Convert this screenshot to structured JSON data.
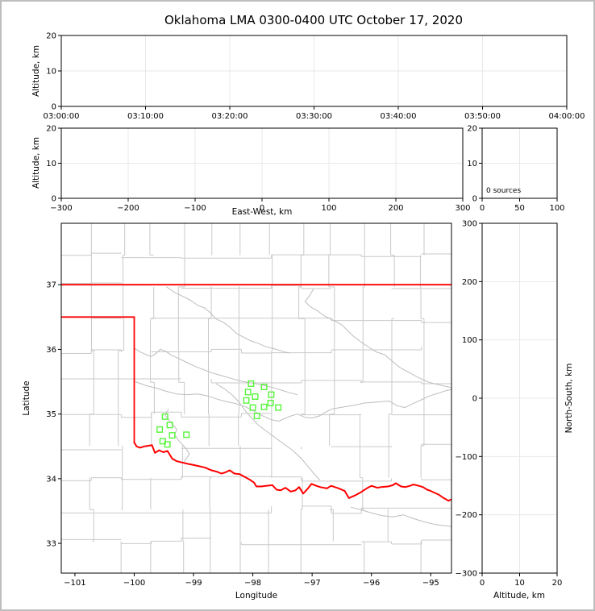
{
  "title": "Oklahoma LMA 0300-0400 UTC October 17, 2020",
  "colors": {
    "background": "#ffffff",
    "frame_border": "#bdbdbd",
    "spine": "#000000",
    "grid": "#e8e8e8",
    "county_line": "#c9c9c9",
    "river_line": "#bdbdbd",
    "state_border": "#ff0000",
    "station_marker": "#57f53b",
    "text": "#000000"
  },
  "chart_data": [
    {
      "id": "time_height",
      "type": "scatter",
      "xlabel": "",
      "ylabel": "Altitude, km",
      "xlim": [
        0,
        3600
      ],
      "ylim": [
        0,
        20
      ],
      "xticks": {
        "values": [
          0,
          600,
          1200,
          1800,
          2400,
          3000,
          3600
        ],
        "labels": [
          "03:00:00",
          "03:10:00",
          "03:20:00",
          "03:30:00",
          "03:40:00",
          "03:50:00",
          "04:00:00"
        ]
      },
      "yticks": {
        "values": [
          0,
          10,
          20
        ],
        "labels": [
          "0",
          "10",
          "20"
        ]
      },
      "grid": true,
      "points": []
    },
    {
      "id": "ew_height",
      "type": "scatter",
      "xlabel": "East-West, km",
      "ylabel": "Altitude, km",
      "xlim": [
        -300,
        300
      ],
      "ylim": [
        0,
        20
      ],
      "xticks": {
        "values": [
          -300,
          -200,
          -100,
          0,
          100,
          200,
          300
        ],
        "labels": [
          "−300",
          "−200",
          "−100",
          "0",
          "100",
          "200",
          "300"
        ]
      },
      "yticks": {
        "values": [
          0,
          10,
          20
        ],
        "labels": [
          "0",
          "10",
          "20"
        ]
      },
      "grid": true,
      "points": []
    },
    {
      "id": "alt_hist",
      "type": "line",
      "annotation": "0 sources",
      "xlim": [
        0,
        100
      ],
      "ylim": [
        0,
        20
      ],
      "xticks": {
        "values": [
          0,
          50,
          100
        ],
        "labels": [
          "0",
          "50",
          "100"
        ]
      },
      "yticks": {
        "values": [
          0,
          10,
          20
        ],
        "labels": [
          "0",
          "10",
          "20"
        ]
      },
      "grid": true,
      "points": []
    },
    {
      "id": "plan_map",
      "type": "scatter",
      "xlabel": "Longitude",
      "ylabel": "Latitude",
      "xlim": [
        -101.23,
        -94.65
      ],
      "ylim": [
        32.54,
        37.95
      ],
      "xticks": {
        "values": [
          -101,
          -100,
          -99,
          -98,
          -97,
          -96,
          -95
        ],
        "labels": [
          "−101",
          "−100",
          "−99",
          "−98",
          "−97",
          "−96",
          "−95"
        ]
      },
      "yticks": {
        "values": [
          33,
          34,
          35,
          36,
          37
        ],
        "labels": [
          "33",
          "34",
          "35",
          "36",
          "37"
        ]
      },
      "grid": false,
      "stations": [
        [
          -99.48,
          34.96
        ],
        [
          -99.4,
          34.83
        ],
        [
          -99.57,
          34.76
        ],
        [
          -99.36,
          34.67
        ],
        [
          -99.12,
          34.68
        ],
        [
          -99.52,
          34.58
        ],
        [
          -99.44,
          34.53
        ],
        [
          -98.03,
          35.47
        ],
        [
          -97.81,
          35.42
        ],
        [
          -98.08,
          35.34
        ],
        [
          -97.96,
          35.27
        ],
        [
          -98.11,
          35.21
        ],
        [
          -97.69,
          35.3
        ],
        [
          -97.7,
          35.17
        ],
        [
          -97.81,
          35.11
        ],
        [
          -98.0,
          35.1
        ],
        [
          -97.57,
          35.1
        ],
        [
          -97.93,
          34.97
        ]
      ],
      "state_border": [
        [
          [
            -101.23,
            37.0
          ],
          [
            -94.65,
            37.0
          ]
        ],
        [
          [
            -94.62,
            37.0
          ],
          [
            -94.62,
            36.5
          ]
        ],
        [
          [
            -101.23,
            36.5
          ],
          [
            -100.0,
            36.5
          ]
        ],
        [
          [
            -100.0,
            36.5
          ],
          [
            -100.0,
            34.56
          ]
        ]
      ],
      "red_river": [
        [
          -100.0,
          34.56
        ],
        [
          -99.96,
          34.5
        ],
        [
          -99.9,
          34.48
        ],
        [
          -99.83,
          34.5
        ],
        [
          -99.76,
          34.51
        ],
        [
          -99.7,
          34.52
        ],
        [
          -99.65,
          34.4
        ],
        [
          -99.58,
          34.44
        ],
        [
          -99.51,
          34.41
        ],
        [
          -99.44,
          34.43
        ],
        [
          -99.36,
          34.31
        ],
        [
          -99.28,
          34.27
        ],
        [
          -99.19,
          34.25
        ],
        [
          -99.1,
          34.23
        ],
        [
          -98.99,
          34.21
        ],
        [
          -98.89,
          34.19
        ],
        [
          -98.8,
          34.17
        ],
        [
          -98.7,
          34.13
        ],
        [
          -98.61,
          34.11
        ],
        [
          -98.53,
          34.08
        ],
        [
          -98.46,
          34.1
        ],
        [
          -98.39,
          34.13
        ],
        [
          -98.31,
          34.08
        ],
        [
          -98.22,
          34.07
        ],
        [
          -98.14,
          34.03
        ],
        [
          -98.06,
          33.99
        ],
        [
          -97.98,
          33.94
        ],
        [
          -97.94,
          33.88
        ],
        [
          -97.86,
          33.88
        ],
        [
          -97.78,
          33.89
        ],
        [
          -97.67,
          33.9
        ],
        [
          -97.6,
          33.83
        ],
        [
          -97.53,
          33.82
        ],
        [
          -97.45,
          33.86
        ],
        [
          -97.36,
          33.8
        ],
        [
          -97.28,
          33.82
        ],
        [
          -97.22,
          33.87
        ],
        [
          -97.15,
          33.77
        ],
        [
          -97.08,
          33.84
        ],
        [
          -97.01,
          33.92
        ],
        [
          -96.93,
          33.89
        ],
        [
          -96.86,
          33.87
        ],
        [
          -96.75,
          33.85
        ],
        [
          -96.68,
          33.89
        ],
        [
          -96.55,
          33.85
        ],
        [
          -96.45,
          33.81
        ],
        [
          -96.38,
          33.7
        ],
        [
          -96.28,
          33.74
        ],
        [
          -96.18,
          33.79
        ],
        [
          -96.08,
          33.85
        ],
        [
          -96.0,
          33.89
        ],
        [
          -95.9,
          33.86
        ],
        [
          -95.84,
          33.87
        ],
        [
          -95.72,
          33.88
        ],
        [
          -95.64,
          33.9
        ],
        [
          -95.59,
          33.93
        ],
        [
          -95.5,
          33.88
        ],
        [
          -95.43,
          33.87
        ],
        [
          -95.35,
          33.89
        ],
        [
          -95.29,
          33.91
        ],
        [
          -95.2,
          33.89
        ],
        [
          -95.13,
          33.87
        ],
        [
          -95.06,
          33.83
        ],
        [
          -95.0,
          33.81
        ],
        [
          -94.93,
          33.78
        ],
        [
          -94.86,
          33.75
        ],
        [
          -94.78,
          33.7
        ],
        [
          -94.7,
          33.66
        ],
        [
          -94.65,
          33.68
        ]
      ],
      "rivers": [
        [
          [
            -99.46,
            36.97
          ],
          [
            -99.32,
            36.88
          ],
          [
            -99.18,
            36.82
          ],
          [
            -99.05,
            36.76
          ],
          [
            -98.93,
            36.68
          ],
          [
            -98.81,
            36.64
          ],
          [
            -98.71,
            36.56
          ],
          [
            -98.62,
            36.47
          ],
          [
            -98.5,
            36.42
          ],
          [
            -98.38,
            36.34
          ],
          [
            -98.28,
            36.25
          ],
          [
            -98.16,
            36.19
          ],
          [
            -98.03,
            36.13
          ],
          [
            -97.9,
            36.09
          ],
          [
            -97.78,
            36.04
          ],
          [
            -97.64,
            36.01
          ],
          [
            -97.5,
            35.97
          ],
          [
            -97.38,
            35.94
          ]
        ],
        [
          [
            -96.98,
            36.93
          ],
          [
            -97.05,
            36.82
          ],
          [
            -97.12,
            36.74
          ],
          [
            -97.03,
            36.66
          ],
          [
            -96.9,
            36.59
          ],
          [
            -96.78,
            36.51
          ],
          [
            -96.62,
            36.44
          ],
          [
            -96.5,
            36.38
          ],
          [
            -96.4,
            36.29
          ],
          [
            -96.3,
            36.2
          ],
          [
            -96.17,
            36.11
          ],
          [
            -96.04,
            36.03
          ],
          [
            -95.92,
            35.96
          ],
          [
            -95.78,
            35.92
          ],
          [
            -95.64,
            35.81
          ],
          [
            -95.52,
            35.72
          ],
          [
            -95.38,
            35.65
          ],
          [
            -95.22,
            35.57
          ],
          [
            -95.06,
            35.5
          ],
          [
            -94.9,
            35.46
          ],
          [
            -94.75,
            35.43
          ],
          [
            -94.65,
            35.41
          ]
        ],
        [
          [
            -100.0,
            36.02
          ],
          [
            -99.9,
            35.96
          ],
          [
            -99.8,
            35.92
          ],
          [
            -99.71,
            35.89
          ],
          [
            -99.63,
            35.94
          ],
          [
            -99.56,
            36.0
          ],
          [
            -99.47,
            35.97
          ],
          [
            -99.37,
            35.91
          ],
          [
            -99.25,
            35.86
          ],
          [
            -99.12,
            35.8
          ],
          [
            -98.98,
            35.74
          ],
          [
            -98.84,
            35.69
          ],
          [
            -98.7,
            35.64
          ],
          [
            -98.55,
            35.6
          ],
          [
            -98.4,
            35.56
          ],
          [
            -98.25,
            35.52
          ],
          [
            -98.1,
            35.49
          ],
          [
            -97.95,
            35.47
          ],
          [
            -97.8,
            35.44
          ],
          [
            -97.66,
            35.41
          ],
          [
            -97.52,
            35.37
          ],
          [
            -97.38,
            35.33
          ],
          [
            -97.25,
            35.3
          ]
        ],
        [
          [
            -99.98,
            35.5
          ],
          [
            -99.8,
            35.44
          ],
          [
            -99.62,
            35.4
          ],
          [
            -99.45,
            35.35
          ],
          [
            -99.28,
            35.31
          ],
          [
            -99.1,
            35.3
          ],
          [
            -98.93,
            35.31
          ],
          [
            -98.76,
            35.28
          ],
          [
            -98.6,
            35.23
          ],
          [
            -98.44,
            35.19
          ],
          [
            -98.28,
            35.16
          ],
          [
            -98.12,
            35.11
          ],
          [
            -97.97,
            35.04
          ],
          [
            -97.83,
            34.97
          ],
          [
            -97.68,
            34.91
          ],
          [
            -97.56,
            34.89
          ],
          [
            -97.47,
            34.93
          ],
          [
            -97.36,
            34.97
          ],
          [
            -97.25,
            35.0
          ],
          [
            -97.12,
            34.95
          ],
          [
            -97.0,
            34.94
          ],
          [
            -96.88,
            34.97
          ],
          [
            -96.77,
            35.03
          ],
          [
            -96.66,
            35.08
          ],
          [
            -96.53,
            35.1
          ],
          [
            -96.4,
            35.12
          ],
          [
            -96.26,
            35.14
          ],
          [
            -96.12,
            35.17
          ],
          [
            -95.98,
            35.18
          ],
          [
            -95.84,
            35.19
          ],
          [
            -95.7,
            35.2
          ],
          [
            -95.57,
            35.13
          ],
          [
            -95.44,
            35.1
          ],
          [
            -95.3,
            35.16
          ],
          [
            -95.16,
            35.22
          ],
          [
            -95.02,
            35.28
          ],
          [
            -94.88,
            35.32
          ],
          [
            -94.75,
            35.36
          ],
          [
            -94.65,
            35.38
          ]
        ],
        [
          [
            -99.42,
            35.08
          ],
          [
            -99.48,
            34.99
          ],
          [
            -99.41,
            34.9
          ],
          [
            -99.34,
            34.83
          ],
          [
            -99.28,
            34.76
          ],
          [
            -99.32,
            34.68
          ],
          [
            -99.26,
            34.6
          ],
          [
            -99.19,
            34.53
          ],
          [
            -99.12,
            34.46
          ],
          [
            -99.07,
            34.38
          ],
          [
            -99.13,
            34.3
          ],
          [
            -99.16,
            34.26
          ]
        ],
        [
          [
            -98.62,
            35.47
          ],
          [
            -98.48,
            35.39
          ],
          [
            -98.34,
            35.29
          ],
          [
            -98.22,
            35.17
          ],
          [
            -98.12,
            35.04
          ],
          [
            -98.02,
            34.94
          ],
          [
            -97.92,
            34.84
          ],
          [
            -97.78,
            34.74
          ],
          [
            -97.63,
            34.64
          ],
          [
            -97.48,
            34.54
          ],
          [
            -97.33,
            34.44
          ],
          [
            -97.18,
            34.31
          ],
          [
            -97.07,
            34.19
          ],
          [
            -96.97,
            34.08
          ],
          [
            -96.87,
            33.98
          ]
        ],
        [
          [
            -96.35,
            33.56
          ],
          [
            -96.18,
            33.52
          ],
          [
            -96.0,
            33.47
          ],
          [
            -95.82,
            33.43
          ],
          [
            -95.64,
            33.41
          ],
          [
            -95.46,
            33.44
          ],
          [
            -95.28,
            33.38
          ],
          [
            -95.1,
            33.33
          ],
          [
            -94.92,
            33.29
          ],
          [
            -94.74,
            33.27
          ],
          [
            -94.65,
            33.26
          ]
        ]
      ],
      "county_grid": {
        "cols": 13,
        "rows": 11,
        "jitter": 0.12,
        "skip": 0.13,
        "seed": 11
      }
    },
    {
      "id": "ns_height",
      "type": "scatter",
      "xlabel": "Altitude, km",
      "ylabel": "North-South, km",
      "ylabel_side": "right",
      "xlim": [
        0,
        20
      ],
      "ylim": [
        -300,
        300
      ],
      "xticks": {
        "values": [
          0,
          10,
          20
        ],
        "labels": [
          "0",
          "10",
          "20"
        ]
      },
      "yticks": {
        "values": [
          -300,
          -200,
          -100,
          0,
          100,
          200,
          300
        ],
        "labels": [
          "−300",
          "−200",
          "−100",
          "0",
          "100",
          "200",
          "300"
        ]
      },
      "grid": true,
      "points": []
    }
  ]
}
